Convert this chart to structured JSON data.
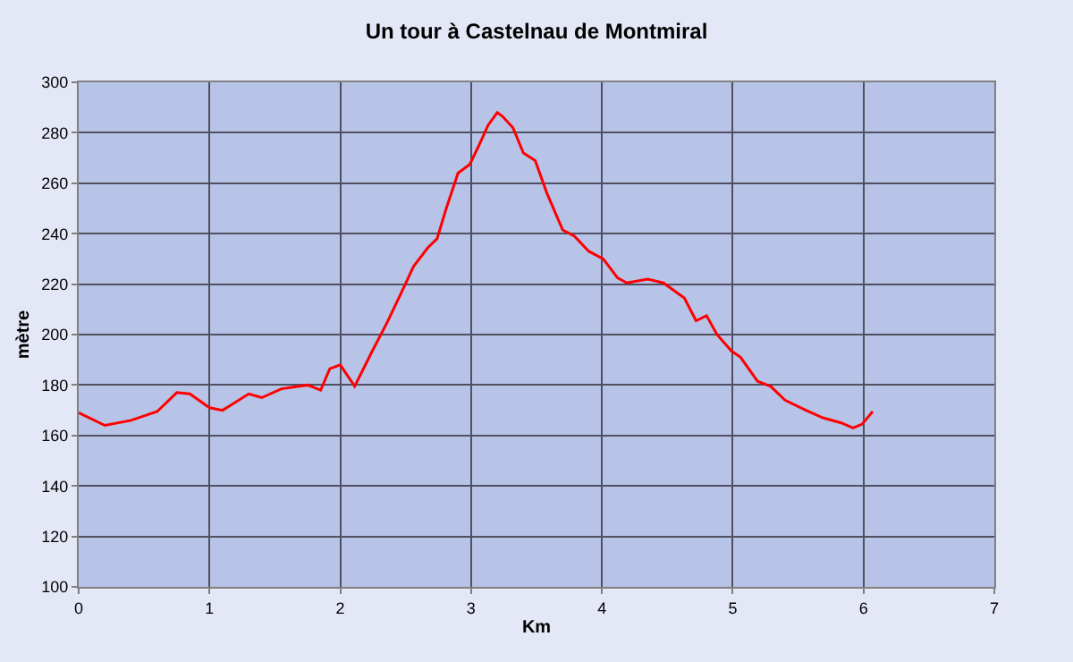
{
  "chart_data": {
    "type": "line",
    "title": "Un tour à Castelnau de Montmiral",
    "xlabel": "Km",
    "ylabel": "mètre",
    "xlim": [
      0,
      7
    ],
    "xticks": [
      0,
      1,
      2,
      3,
      4,
      5,
      6,
      7
    ],
    "ylim": [
      100,
      300
    ],
    "yticks": [
      100,
      120,
      140,
      160,
      180,
      200,
      220,
      240,
      260,
      280,
      300
    ],
    "grid": true,
    "marker": "none",
    "line_style": "solid",
    "series": [
      {
        "color": "#ff0000",
        "x": [
          0,
          0.2,
          0.4,
          0.6,
          0.75,
          0.85,
          1.0,
          1.1,
          1.3,
          1.4,
          1.55,
          1.75,
          1.85,
          1.92,
          2.0,
          2.11,
          2.24,
          2.36,
          2.47,
          2.56,
          2.67,
          2.74,
          2.81,
          2.9,
          2.99,
          3.06,
          3.13,
          3.2,
          3.24,
          3.32,
          3.4,
          3.49,
          3.58,
          3.7,
          3.79,
          3.9,
          4.01,
          4.12,
          4.19,
          4.35,
          4.47,
          4.63,
          4.72,
          4.8,
          4.88,
          4.99,
          5.06,
          5.19,
          5.29,
          5.4,
          5.56,
          5.69,
          5.83,
          5.92,
          5.99,
          6.07
        ],
        "values": [
          169,
          164,
          166,
          169.5,
          177,
          176.5,
          171,
          170,
          176.5,
          175,
          178.5,
          180,
          178,
          186.5,
          188,
          179.5,
          193,
          205,
          217,
          227,
          234.5,
          238,
          250,
          264,
          267.5,
          275,
          283,
          288,
          286.5,
          282,
          272,
          269,
          256,
          241.5,
          239,
          233,
          230,
          222.5,
          220.5,
          222,
          220.5,
          214.5,
          205.5,
          207.5,
          200,
          193.5,
          191,
          181.5,
          179.5,
          174,
          170,
          167,
          165,
          163,
          164.5,
          169.5
        ]
      }
    ]
  }
}
